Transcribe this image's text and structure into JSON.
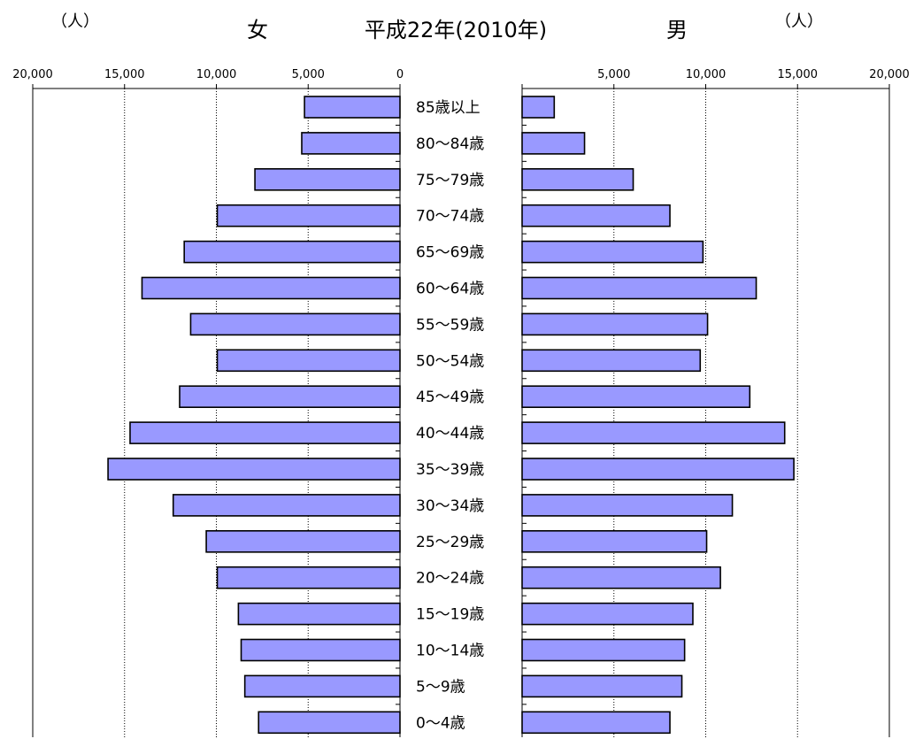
{
  "chart_data": {
    "type": "bar",
    "orientation": "horizontal",
    "layout": "population-pyramid",
    "title": "平成22年(2010年)",
    "left_label": "女",
    "right_label": "男",
    "unit": "（人）",
    "xlim": [
      0,
      20000
    ],
    "ticks": {
      "left": [
        "20,000",
        "15,000",
        "10,000",
        "5,000",
        "0"
      ],
      "right": [
        "5,000",
        "10,000",
        "15,000",
        "20,000"
      ]
    },
    "grid": true,
    "bar_color": "#9999ff",
    "categories": [
      "85歳以上",
      "80～84歳",
      "75～79歳",
      "70～74歳",
      "65～69歳",
      "60～64歳",
      "55～59歳",
      "50～54歳",
      "45～49歳",
      "40～44歳",
      "35～39歳",
      "30～34歳",
      "25～29歳",
      "20～24歳",
      "15～19歳",
      "10～14歳",
      "5～9歳",
      "0～4歳"
    ],
    "series": [
      {
        "name": "女",
        "values": [
          5200,
          5350,
          7900,
          9950,
          11750,
          14050,
          11400,
          9950,
          12000,
          14700,
          15900,
          12350,
          10550,
          9950,
          8800,
          8650,
          8450,
          7700
        ]
      },
      {
        "name": "男",
        "values": [
          1750,
          3400,
          6050,
          8050,
          9850,
          12750,
          10100,
          9700,
          12400,
          14300,
          14800,
          11450,
          10050,
          10800,
          9300,
          8850,
          8700,
          8050
        ]
      }
    ]
  }
}
